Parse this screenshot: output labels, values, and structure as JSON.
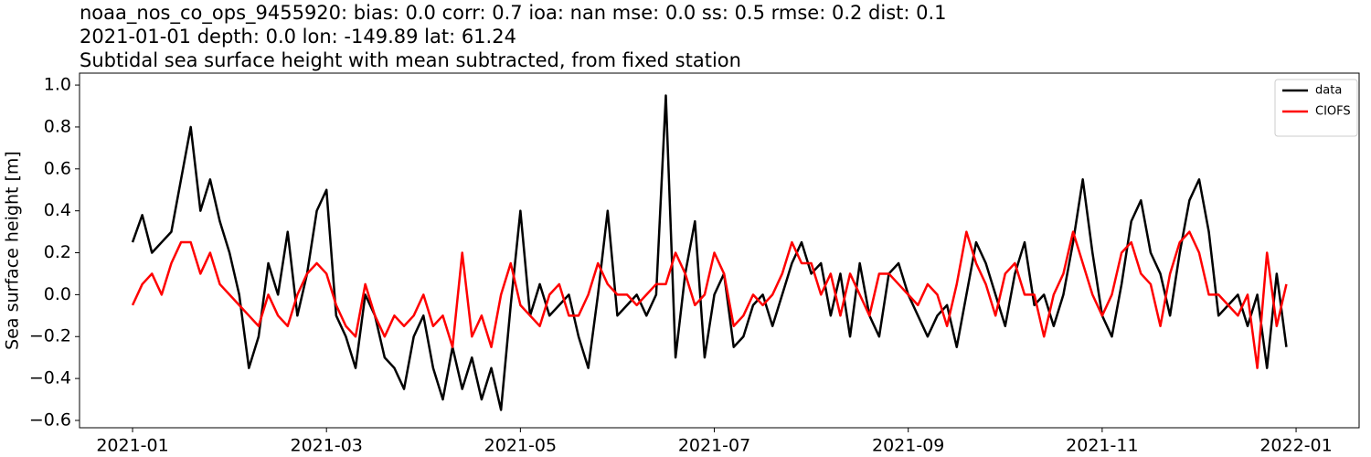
{
  "chart_data": {
    "type": "line",
    "title_lines": [
      "noaa_nos_co_ops_9455920: bias: 0.0  corr: 0.7  ioa: nan  mse: 0.0  ss: 0.5  rmse: 0.2  dist: 0.1",
      "2021-01-01 depth: 0.0 lon: -149.89 lat: 61.24",
      "Subtidal sea surface height with mean subtracted, from fixed station"
    ],
    "ylabel": "Sea surface height [m]",
    "x": [
      0.0,
      0.1,
      0.2,
      0.3,
      0.4,
      0.5,
      0.6,
      0.7,
      0.8,
      0.9,
      1.0,
      1.1,
      1.2,
      1.3,
      1.4,
      1.5,
      1.6,
      1.7,
      1.8,
      1.9,
      2.0,
      2.1,
      2.2,
      2.3,
      2.4,
      2.5,
      2.6,
      2.7,
      2.8,
      2.9,
      3.0,
      3.1,
      3.2,
      3.3,
      3.4,
      3.5,
      3.6,
      3.7,
      3.8,
      3.9,
      4.0,
      4.1,
      4.2,
      4.3,
      4.4,
      4.5,
      4.6,
      4.7,
      4.8,
      4.9,
      5.0,
      5.1,
      5.2,
      5.3,
      5.4,
      5.5,
      5.6,
      5.7,
      5.8,
      5.9,
      6.0,
      6.1,
      6.2,
      6.3,
      6.4,
      6.5,
      6.6,
      6.7,
      6.8,
      6.9,
      7.0,
      7.1,
      7.2,
      7.3,
      7.4,
      7.5,
      7.6,
      7.7,
      7.8,
      7.9,
      8.0,
      8.1,
      8.2,
      8.3,
      8.4,
      8.5,
      8.6,
      8.7,
      8.8,
      8.9,
      9.0,
      9.1,
      9.2,
      9.3,
      9.4,
      9.5,
      9.6,
      9.7,
      9.8,
      9.9,
      10.0,
      10.1,
      10.2,
      10.3,
      10.4,
      10.5,
      10.6,
      10.7,
      10.8,
      10.9,
      11.0,
      11.1,
      11.2,
      11.3,
      11.4,
      11.5,
      11.6,
      11.7,
      11.8,
      11.9
    ],
    "series": [
      {
        "name": "data",
        "color": "#000000",
        "values": [
          0.25,
          0.38,
          0.2,
          0.25,
          0.3,
          0.55,
          0.8,
          0.4,
          0.55,
          0.35,
          0.2,
          0.0,
          -0.35,
          -0.2,
          0.15,
          0.0,
          0.3,
          -0.1,
          0.1,
          0.4,
          0.5,
          -0.1,
          -0.2,
          -0.35,
          0.0,
          -0.1,
          -0.3,
          -0.35,
          -0.45,
          -0.2,
          -0.1,
          -0.35,
          -0.5,
          -0.25,
          -0.45,
          -0.3,
          -0.5,
          -0.35,
          -0.55,
          -0.05,
          0.4,
          -0.1,
          0.05,
          -0.1,
          -0.05,
          0.0,
          -0.2,
          -0.35,
          0.0,
          0.4,
          -0.1,
          -0.05,
          0.0,
          -0.1,
          0.0,
          0.95,
          -0.3,
          0.1,
          0.35,
          -0.3,
          0.0,
          0.1,
          -0.25,
          -0.2,
          -0.05,
          0.0,
          -0.15,
          0.0,
          0.15,
          0.25,
          0.1,
          0.15,
          -0.1,
          0.1,
          -0.2,
          0.15,
          -0.1,
          -0.2,
          0.1,
          0.15,
          0.0,
          -0.1,
          -0.2,
          -0.1,
          -0.05,
          -0.25,
          0.0,
          0.25,
          0.15,
          0.0,
          -0.15,
          0.1,
          0.25,
          -0.05,
          0.0,
          -0.15,
          0.0,
          0.25,
          0.55,
          0.2,
          -0.1,
          -0.2,
          0.05,
          0.35,
          0.45,
          0.2,
          0.1,
          -0.1,
          0.2,
          0.45,
          0.55,
          0.3,
          -0.1,
          -0.05,
          0.0,
          -0.15,
          0.0,
          -0.35,
          0.1,
          -0.25
        ]
      },
      {
        "name": "CIOFS",
        "color": "#ff0000",
        "values": [
          -0.05,
          0.05,
          0.1,
          0.0,
          0.15,
          0.25,
          0.25,
          0.1,
          0.2,
          0.05,
          0.0,
          -0.05,
          -0.1,
          -0.15,
          0.0,
          -0.1,
          -0.15,
          0.0,
          0.1,
          0.15,
          0.1,
          -0.05,
          -0.15,
          -0.2,
          0.05,
          -0.1,
          -0.2,
          -0.1,
          -0.15,
          -0.1,
          0.0,
          -0.15,
          -0.1,
          -0.25,
          0.2,
          -0.2,
          -0.1,
          -0.25,
          0.0,
          0.15,
          -0.05,
          -0.1,
          -0.15,
          0.0,
          0.05,
          -0.1,
          -0.1,
          0.0,
          0.15,
          0.05,
          0.0,
          0.0,
          -0.05,
          0.0,
          0.05,
          0.05,
          0.2,
          0.1,
          -0.05,
          0.0,
          0.2,
          0.1,
          -0.15,
          -0.1,
          0.0,
          -0.05,
          0.0,
          0.1,
          0.25,
          0.15,
          0.15,
          0.0,
          0.1,
          -0.1,
          0.1,
          0.0,
          -0.1,
          0.1,
          0.1,
          0.05,
          0.0,
          -0.05,
          0.05,
          0.0,
          -0.15,
          0.05,
          0.3,
          0.15,
          0.05,
          -0.1,
          0.1,
          0.15,
          0.0,
          0.0,
          -0.2,
          0.0,
          0.1,
          0.3,
          0.15,
          0.0,
          -0.1,
          0.0,
          0.2,
          0.25,
          0.1,
          0.05,
          -0.15,
          0.1,
          0.25,
          0.3,
          0.2,
          0.0,
          0.0,
          -0.05,
          -0.1,
          0.0,
          -0.35,
          0.2,
          -0.15,
          0.05
        ]
      }
    ],
    "xlim": [
      -0.547,
      12.65
    ],
    "xticks": [
      {
        "value": 0,
        "label": "2021-01"
      },
      {
        "value": 2,
        "label": "2021-03"
      },
      {
        "value": 4,
        "label": "2021-05"
      },
      {
        "value": 6,
        "label": "2021-07"
      },
      {
        "value": 8,
        "label": "2021-09"
      },
      {
        "value": 10,
        "label": "2021-11"
      },
      {
        "value": 12,
        "label": "2022-01"
      }
    ],
    "ylim": [
      -0.635,
      1.057
    ],
    "yticks": [
      {
        "value": -0.6,
        "label": "−0.6"
      },
      {
        "value": -0.4,
        "label": "−0.4"
      },
      {
        "value": -0.2,
        "label": "−0.2"
      },
      {
        "value": 0,
        "label": "0.0"
      },
      {
        "value": 0.2,
        "label": "0.2"
      },
      {
        "value": 0.4,
        "label": "0.4"
      },
      {
        "value": 0.6,
        "label": "0.6"
      },
      {
        "value": 0.8,
        "label": "0.8"
      },
      {
        "value": 1.0,
        "label": "1.0"
      }
    ],
    "legend": "upper right",
    "grid": false
  }
}
